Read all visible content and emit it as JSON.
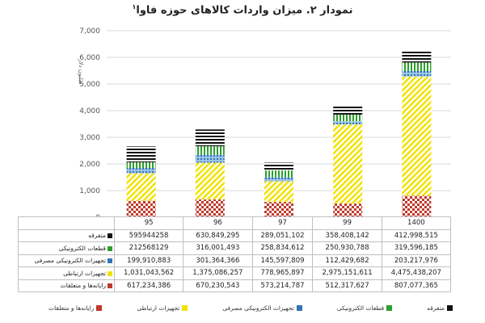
{
  "chart_title": "نمودار ۲. میزان واردات کالاهای حوزه فاوا",
  "title_sup": "۱",
  "y_axis_label": "میلیون دلار",
  "chart_data": {
    "type": "bar",
    "stacked": true,
    "categories": [
      "95",
      "96",
      "97",
      "99",
      "1400"
    ],
    "ylim": [
      0,
      7000
    ],
    "yticks": [
      "0",
      "1,000",
      "2,000",
      "3,000",
      "4,000",
      "5,000",
      "6,000",
      "7,000"
    ],
    "grid": true,
    "legend_position": "bottom",
    "series": [
      {
        "name": "رایانه‌ها و متعلقات",
        "values": [
          617.234386,
          670.230543,
          573.214787,
          512.317627,
          807.077365
        ],
        "labels": [
          "617,234,386",
          "670,230,543",
          "573,214,787",
          "512,317,627",
          "807,077,365"
        ],
        "color": "#c0392b",
        "pattern": "checker"
      },
      {
        "name": "تجهیزات ارتباطی",
        "values": [
          1031.043562,
          1375.086257,
          778.965897,
          2975.151611,
          4475.438207
        ],
        "labels": [
          "1,031,043,562",
          "1,375,086,257",
          "778,965,897",
          "2,975,151,611",
          "4,475,438,207"
        ],
        "color": "#f2e200",
        "pattern": "diagonal"
      },
      {
        "name": "تجهیزات الکترونیکی مصرفی",
        "values": [
          199.910883,
          301.364366,
          145.597809,
          112.429682,
          203.217976
        ],
        "labels": [
          "199,910,883",
          "301,364,366",
          "145,597,809",
          "112,429,682",
          "203,217,976"
        ],
        "color": "#2e75b6",
        "pattern": "dots"
      },
      {
        "name": "قطعات الکترونیکی",
        "values": [
          212.568129,
          316.001493,
          258.834612,
          250.930788,
          319.596185
        ],
        "labels": [
          "212568129",
          "316,001,493",
          "258,834,612",
          "250,930,788",
          "319,596,185"
        ],
        "color": "#2ca02c",
        "pattern": "vertical"
      },
      {
        "name": "متفرقه",
        "values": [
          595.944258,
          630.849295,
          289.051102,
          358.408142,
          412.998515
        ],
        "labels": [
          "595944258",
          "630,849,295",
          "289,051,102",
          "358,408,142",
          "412,998,515"
        ],
        "color": "#111111",
        "pattern": "horizontal"
      }
    ]
  }
}
